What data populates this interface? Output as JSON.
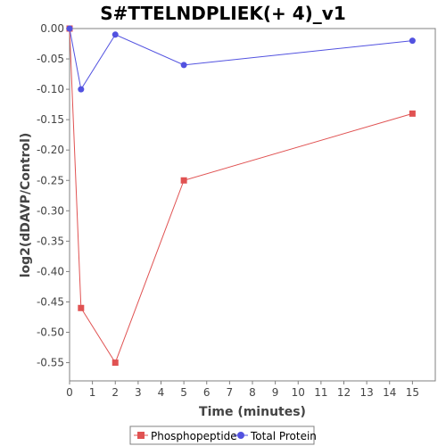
{
  "chart_data": {
    "type": "line",
    "title": "S#TTELNDPLIEK(+ 4)_v1",
    "xlabel": "Time (minutes)",
    "ylabel": "log2(dDAVP/Control)",
    "xlim": [
      0,
      16
    ],
    "ylim": [
      -0.58,
      0
    ],
    "x_ticks": [
      0,
      1,
      2,
      3,
      4,
      5,
      6,
      7,
      8,
      9,
      10,
      11,
      12,
      13,
      14,
      15
    ],
    "y_ticks": [
      0.0,
      -0.05,
      -0.1,
      -0.15,
      -0.2,
      -0.25,
      -0.3,
      -0.35,
      -0.4,
      -0.45,
      -0.5,
      -0.55
    ],
    "y_tick_labels": [
      "0.00",
      "-0.05",
      "-0.10",
      "-0.15",
      "-0.20",
      "-0.25",
      "-0.30",
      "-0.35",
      "-0.40",
      "-0.45",
      "-0.50",
      "-0.55"
    ],
    "grid": false,
    "legend_position": "bottom",
    "series": [
      {
        "name": "Phosphopeptide",
        "color": "#e05252",
        "marker": "square",
        "x": [
          0,
          0.5,
          2,
          5,
          15
        ],
        "y": [
          0,
          -0.46,
          -0.55,
          -0.25,
          -0.14
        ]
      },
      {
        "name": "Total Protein",
        "color": "#5252e0",
        "marker": "circle",
        "x": [
          0,
          0.5,
          2,
          5,
          15
        ],
        "y": [
          0,
          -0.1,
          -0.01,
          -0.06,
          -0.02
        ]
      }
    ]
  }
}
